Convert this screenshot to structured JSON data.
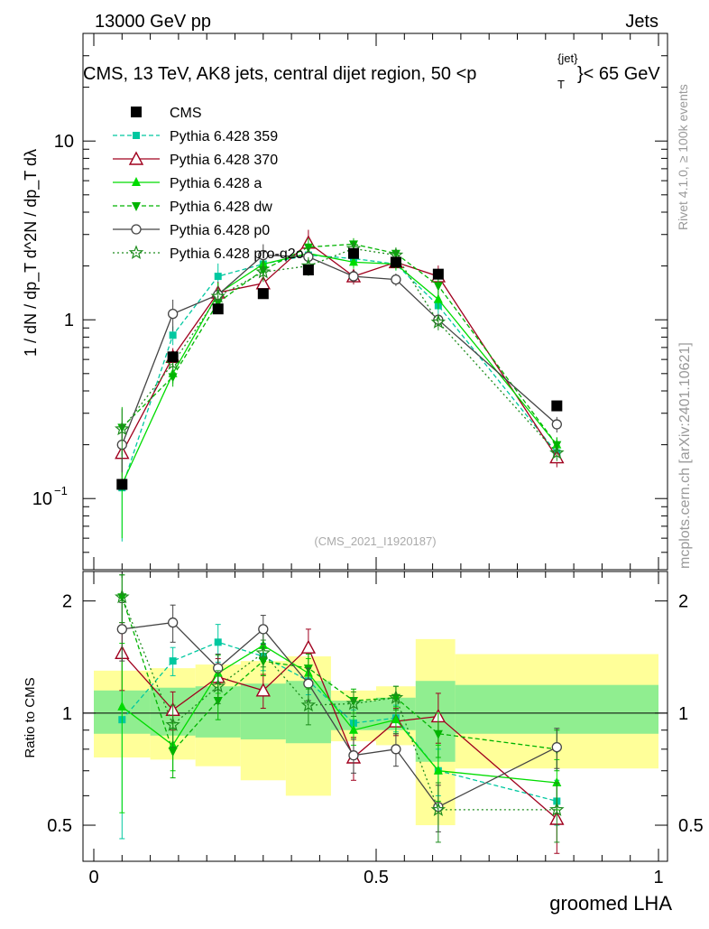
{
  "header": {
    "left": "13000 GeV pp",
    "right": "Jets",
    "title_main": "CMS, 13 TeV, AK8 jets, central dijet region, 50 <p",
    "title_sub": "T",
    "title_sup": "{jet}",
    "title_end": "}< 65 GeV",
    "rivet_label": "Rivet 4.1.0, ≥ 100k events",
    "mcplots_label": "mcplots.cern.ch [arXiv:2401.10621]",
    "analysis_id": "(CMS_2021_I1920187)"
  },
  "axes": {
    "y_label_main": "1 / dN / dp_T  d^2N / dp_T dλ",
    "y_label_ratio": "Ratio to CMS",
    "x_label": "groomed LHA",
    "main_tick_labels": [
      "10",
      "1",
      "10",
      "−1"
    ],
    "ratio_tick_labels": [
      "2",
      "1",
      "0.5"
    ],
    "x_tick_labels": [
      "0",
      "0.5",
      "1"
    ]
  },
  "chart_data": {
    "type": "scatter",
    "x_scale": "linear",
    "y_scale": "log",
    "xlim": [
      0,
      1
    ],
    "ylim": [
      0.04,
      40
    ],
    "ratio_ylim": [
      0.4,
      2.4
    ],
    "x": [
      0.05,
      0.14,
      0.22,
      0.3,
      0.38,
      0.46,
      0.535,
      0.61,
      0.82
    ],
    "data": {
      "name": "CMS",
      "values": [
        0.12,
        0.62,
        1.15,
        1.4,
        1.9,
        2.35,
        2.1,
        1.8,
        0.33
      ]
    },
    "bands": [
      {
        "x": [
          0.0,
          0.1
        ],
        "inner": [
          0.88,
          1.15
        ],
        "outer": [
          0.76,
          1.3
        ]
      },
      {
        "x": [
          0.1,
          0.18
        ],
        "inner": [
          0.87,
          1.17
        ],
        "outer": [
          0.75,
          1.32
        ]
      },
      {
        "x": [
          0.18,
          0.26
        ],
        "inner": [
          0.86,
          1.18
        ],
        "outer": [
          0.72,
          1.35
        ]
      },
      {
        "x": [
          0.26,
          0.34
        ],
        "inner": [
          0.85,
          1.2
        ],
        "outer": [
          0.66,
          1.38
        ]
      },
      {
        "x": [
          0.34,
          0.42
        ],
        "inner": [
          0.83,
          1.22
        ],
        "outer": [
          0.6,
          1.42
        ]
      },
      {
        "x": [
          0.42,
          0.5
        ],
        "inner": [
          0.9,
          1.08
        ],
        "outer": [
          0.84,
          1.15
        ]
      },
      {
        "x": [
          0.5,
          0.57
        ],
        "inner": [
          0.9,
          1.1
        ],
        "outer": [
          0.82,
          1.18
        ]
      },
      {
        "x": [
          0.57,
          0.64
        ],
        "inner": [
          0.74,
          1.22
        ],
        "outer": [
          0.5,
          1.58
        ]
      },
      {
        "x": [
          0.64,
          1.0
        ],
        "inner": [
          0.88,
          1.19
        ],
        "outer": [
          0.71,
          1.44
        ]
      }
    ],
    "series": [
      {
        "name": "Pythia 6.428 359",
        "color": "#00c8a0",
        "dash": "5,3",
        "marker": "square-small",
        "values": [
          0.115,
          0.82,
          1.75,
          2.05,
          2.3,
          2.2,
          2.05,
          1.2,
          0.18
        ],
        "ratio": [
          0.96,
          1.38,
          1.55,
          1.42,
          1.22,
          0.94,
          0.97,
          0.7,
          0.58
        ],
        "ratio_err": [
          0.5,
          0.12,
          0.18,
          0.12,
          0.1,
          0.08,
          0.08,
          0.1,
          0.08
        ]
      },
      {
        "name": "Pythia 6.428 370",
        "color": "#a0001e",
        "dash": "",
        "marker": "triangle-open",
        "values": [
          0.18,
          0.62,
          1.42,
          1.6,
          2.7,
          1.75,
          2.1,
          1.75,
          0.17
        ],
        "ratio": [
          1.45,
          1.02,
          1.25,
          1.15,
          1.5,
          0.76,
          0.95,
          0.98,
          0.52
        ],
        "ratio_err": [
          0.3,
          0.12,
          0.15,
          0.12,
          0.18,
          0.1,
          0.08,
          0.15,
          0.12
        ]
      },
      {
        "name": "Pythia 6.428 a",
        "color": "#00dc00",
        "dash": "",
        "marker": "triangle-up",
        "values": [
          0.12,
          0.5,
          1.4,
          2.05,
          2.35,
          2.1,
          2.05,
          1.3,
          0.2
        ],
        "ratio": [
          1.04,
          0.82,
          1.28,
          1.52,
          1.28,
          0.9,
          0.96,
          0.7,
          0.65
        ],
        "ratio_err": [
          0.5,
          0.12,
          0.15,
          0.12,
          0.12,
          0.08,
          0.08,
          0.12,
          0.1
        ]
      },
      {
        "name": "Pythia 6.428 dw",
        "color": "#00b400",
        "dash": "5,3",
        "marker": "triangle-down",
        "values": [
          0.25,
          0.48,
          1.25,
          1.9,
          2.55,
          2.65,
          2.35,
          1.55,
          0.2
        ],
        "ratio": [
          2.05,
          0.79,
          1.08,
          1.38,
          1.32,
          1.08,
          1.1,
          0.88,
          0.8
        ],
        "ratio_err": [
          0.3,
          0.12,
          0.12,
          0.12,
          0.12,
          0.08,
          0.08,
          0.12,
          0.1
        ]
      },
      {
        "name": "Pythia 6.428 p0",
        "color": "#444444",
        "dash": "",
        "marker": "circle-open",
        "values": [
          0.2,
          1.08,
          1.38,
          2.3,
          2.25,
          1.75,
          1.68,
          1.0,
          0.26
        ],
        "ratio": [
          1.68,
          1.75,
          1.32,
          1.68,
          1.2,
          0.77,
          0.8,
          0.56,
          0.81
        ],
        "ratio_err": [
          0.3,
          0.2,
          0.12,
          0.15,
          0.12,
          0.08,
          0.08,
          0.08,
          0.1
        ]
      },
      {
        "name": "Pythia 6.428 pro-q2o",
        "color": "#1e8c1e",
        "dash": "2,3",
        "marker": "star",
        "values": [
          0.245,
          0.57,
          1.35,
          1.85,
          2.0,
          2.5,
          2.3,
          0.97,
          0.18
        ],
        "ratio": [
          2.05,
          0.93,
          1.18,
          1.45,
          1.05,
          1.06,
          1.1,
          0.55,
          0.55
        ],
        "ratio_err": [
          0.3,
          0.12,
          0.12,
          0.12,
          0.12,
          0.08,
          0.08,
          0.1,
          0.1
        ]
      }
    ],
    "data_series_label": "CMS"
  }
}
